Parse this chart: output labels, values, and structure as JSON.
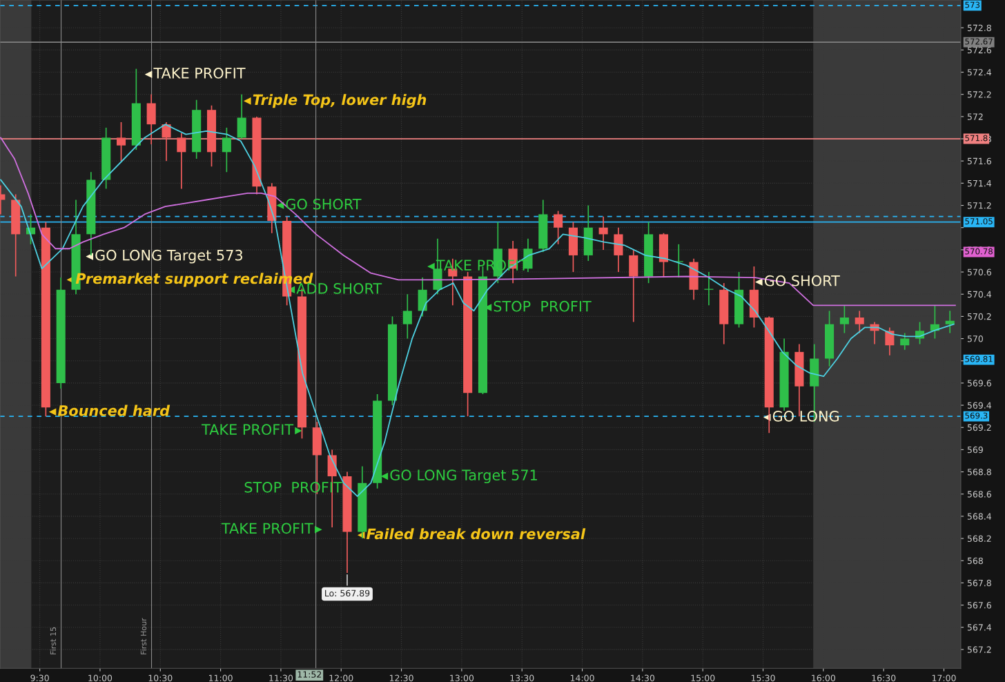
{
  "chart_data": {
    "type": "candlestick",
    "x": [
      9.175,
      9.3,
      9.425,
      9.55,
      9.675,
      9.8,
      9.925,
      10.05,
      10.175,
      10.3,
      10.425,
      10.55,
      10.675,
      10.8,
      10.925,
      11.05,
      11.175,
      11.3,
      11.425,
      11.55,
      11.675,
      11.8,
      11.925,
      12.05,
      12.175,
      12.3,
      12.425,
      12.55,
      12.675,
      12.8,
      12.925,
      13.05,
      13.175,
      13.3,
      13.425,
      13.55,
      13.675,
      13.8,
      13.925,
      14.05,
      14.175,
      14.3,
      14.425,
      14.55,
      14.675,
      14.8,
      14.925,
      15.05,
      15.175,
      15.3,
      15.425,
      15.55,
      15.675,
      15.8,
      15.925,
      16.05,
      16.175,
      16.3,
      16.425,
      16.55,
      16.675,
      16.8,
      16.925,
      17.05
    ],
    "ohlc": [
      [
        571.3,
        571.38,
        571.12,
        571.25
      ],
      [
        571.25,
        571.3,
        570.56,
        570.94
      ],
      [
        570.94,
        571.12,
        570.85,
        571.0
      ],
      [
        571.0,
        571.05,
        569.3,
        569.38
      ],
      [
        569.6,
        570.55,
        569.55,
        570.44
      ],
      [
        570.44,
        571.25,
        570.4,
        570.94
      ],
      [
        570.94,
        571.5,
        570.75,
        571.43
      ],
      [
        571.43,
        571.9,
        571.35,
        571.81
      ],
      [
        571.81,
        571.95,
        571.6,
        571.74
      ],
      [
        571.74,
        572.43,
        571.7,
        572.12
      ],
      [
        572.12,
        572.2,
        571.75,
        571.93
      ],
      [
        571.93,
        571.95,
        571.6,
        571.81
      ],
      [
        571.81,
        571.85,
        571.35,
        571.68
      ],
      [
        571.68,
        572.15,
        571.62,
        572.06
      ],
      [
        572.06,
        572.1,
        571.55,
        571.68
      ],
      [
        571.68,
        571.9,
        571.5,
        571.81
      ],
      [
        571.81,
        572.2,
        571.8,
        571.99
      ],
      [
        571.99,
        572.0,
        571.3,
        571.37
      ],
      [
        571.37,
        571.4,
        570.95,
        571.06
      ],
      [
        571.06,
        571.1,
        570.3,
        570.38
      ],
      [
        570.38,
        570.45,
        569.1,
        569.2
      ],
      [
        569.2,
        569.25,
        568.6,
        568.95
      ],
      [
        568.95,
        569.0,
        568.3,
        568.76
      ],
      [
        568.76,
        568.8,
        567.89,
        568.26
      ],
      [
        568.26,
        568.85,
        568.2,
        568.7
      ],
      [
        568.7,
        569.5,
        568.65,
        569.44
      ],
      [
        569.44,
        570.2,
        569.4,
        570.13
      ],
      [
        570.13,
        570.4,
        570.0,
        570.25
      ],
      [
        570.25,
        570.55,
        570.2,
        570.44
      ],
      [
        570.44,
        570.9,
        570.4,
        570.63
      ],
      [
        570.63,
        570.72,
        570.3,
        570.56
      ],
      [
        570.56,
        570.6,
        569.3,
        569.51
      ],
      [
        569.51,
        570.65,
        569.5,
        570.56
      ],
      [
        570.56,
        571.05,
        570.5,
        570.81
      ],
      [
        570.81,
        570.88,
        570.5,
        570.63
      ],
      [
        570.63,
        570.9,
        570.6,
        570.81
      ],
      [
        570.81,
        571.25,
        570.78,
        571.12
      ],
      [
        571.12,
        571.15,
        570.85,
        571.0
      ],
      [
        571.0,
        571.05,
        570.6,
        570.75
      ],
      [
        570.75,
        571.2,
        570.7,
        571.0
      ],
      [
        571.0,
        571.1,
        570.8,
        570.94
      ],
      [
        570.94,
        571.0,
        570.6,
        570.75
      ],
      [
        570.75,
        570.8,
        570.15,
        570.56
      ],
      [
        570.56,
        571.05,
        570.5,
        570.94
      ],
      [
        570.94,
        570.95,
        570.55,
        570.69
      ],
      [
        570.69,
        570.85,
        570.55,
        570.69
      ],
      [
        570.69,
        570.72,
        570.35,
        570.44
      ],
      [
        570.44,
        570.6,
        570.3,
        570.44
      ],
      [
        570.44,
        570.5,
        569.95,
        570.13
      ],
      [
        570.13,
        570.6,
        570.1,
        570.44
      ],
      [
        570.44,
        570.65,
        570.1,
        570.19
      ],
      [
        570.19,
        570.2,
        569.15,
        569.38
      ],
      [
        569.38,
        570.0,
        569.35,
        569.88
      ],
      [
        569.88,
        569.95,
        569.3,
        569.57
      ],
      [
        569.57,
        569.95,
        569.25,
        569.82
      ],
      [
        569.82,
        570.25,
        569.75,
        570.13
      ],
      [
        570.13,
        570.3,
        570.05,
        570.19
      ],
      [
        570.19,
        570.25,
        570.05,
        570.13
      ],
      [
        570.13,
        570.15,
        569.95,
        570.07
      ],
      [
        570.07,
        570.1,
        569.85,
        569.94
      ],
      [
        569.94,
        570.05,
        569.9,
        570.0
      ],
      [
        570.0,
        570.15,
        569.95,
        570.07
      ],
      [
        570.07,
        570.3,
        570.0,
        570.13
      ],
      [
        570.13,
        570.25,
        570.05,
        570.16
      ]
    ],
    "colors": [
      "#f25c5c",
      "#f25c5c",
      "#2fbf4a",
      "#f25c5c",
      "#2fbf4a",
      "#2fbf4a",
      "#2fbf4a",
      "#2fbf4a",
      "#f25c5c",
      "#2fbf4a",
      "#f25c5c",
      "#f25c5c",
      "#f25c5c",
      "#2fbf4a",
      "#f25c5c",
      "#2fbf4a",
      "#2fbf4a",
      "#f25c5c",
      "#f25c5c",
      "#f25c5c",
      "#f25c5c",
      "#f25c5c",
      "#f25c5c",
      "#f25c5c",
      "#2fbf4a",
      "#2fbf4a",
      "#2fbf4a",
      "#2fbf4a",
      "#2fbf4a",
      "#2fbf4a",
      "#f25c5c",
      "#f25c5c",
      "#2fbf4a",
      "#2fbf4a",
      "#f25c5c",
      "#2fbf4a",
      "#2fbf4a",
      "#f25c5c",
      "#f25c5c",
      "#2fbf4a",
      "#f25c5c",
      "#f25c5c",
      "#f25c5c",
      "#2fbf4a",
      "#f25c5c",
      "#2fbf4a",
      "#f25c5c",
      "#2fbf4a",
      "#f25c5c",
      "#2fbf4a",
      "#f25c5c",
      "#f25c5c",
      "#2fbf4a",
      "#f25c5c",
      "#2fbf4a",
      "#2fbf4a",
      "#2fbf4a",
      "#f25c5c",
      "#f25c5c",
      "#f25c5c",
      "#2fbf4a",
      "#2fbf4a",
      "#2fbf4a",
      "#2fbf4a"
    ],
    "series": [
      {
        "type": "line",
        "color": "#4dd0e1",
        "x": [
          9.176,
          9.346,
          9.517,
          9.688,
          9.858,
          10.029,
          10.2,
          10.37,
          10.541,
          10.712,
          10.882,
          11.053,
          11.167,
          11.28,
          11.394,
          11.451,
          11.565,
          11.679,
          11.792,
          11.906,
          12.02,
          12.134,
          12.247,
          12.361,
          12.475,
          12.589,
          12.703,
          12.816,
          12.93,
          13.015,
          13.101,
          13.214,
          13.385,
          13.556,
          13.726,
          13.84,
          14.011,
          14.181,
          14.352,
          14.523,
          14.693,
          14.864,
          15.035,
          15.205,
          15.319,
          15.433,
          15.547,
          15.66,
          15.774,
          15.888,
          16.002,
          16.116,
          16.229,
          16.343,
          16.457,
          16.571,
          16.684,
          16.798,
          16.912,
          17.082
        ],
        "values": [
          571.43,
          571.19,
          570.63,
          570.81,
          571.19,
          571.43,
          571.62,
          571.81,
          571.93,
          571.84,
          571.87,
          571.84,
          571.78,
          571.56,
          571.25,
          571.06,
          570.38,
          569.69,
          569.32,
          568.95,
          568.7,
          568.58,
          568.7,
          569.07,
          569.57,
          570.0,
          570.32,
          570.44,
          570.5,
          570.32,
          570.25,
          570.44,
          570.63,
          570.75,
          570.81,
          570.94,
          570.91,
          570.87,
          570.84,
          570.75,
          570.72,
          570.66,
          570.56,
          570.44,
          570.38,
          570.25,
          570.07,
          569.88,
          569.76,
          569.69,
          569.66,
          569.82,
          570.0,
          570.1,
          570.1,
          570.04,
          570.02,
          570.02,
          570.07,
          570.13
        ]
      },
      {
        "type": "line",
        "color": "#d070e0",
        "x": [
          9.176,
          9.29,
          9.403,
          9.517,
          9.631,
          9.745,
          9.858,
          10.029,
          10.2,
          10.37,
          10.541,
          10.712,
          10.882,
          11.053,
          11.224,
          11.337,
          11.451,
          11.622,
          11.792,
          12.02,
          12.247,
          12.475,
          12.873,
          13.726,
          14.864,
          15.433,
          15.717,
          15.916,
          17.094
        ],
        "values": [
          571.81,
          571.62,
          571.31,
          570.94,
          570.81,
          570.81,
          570.87,
          570.94,
          571.0,
          571.12,
          571.19,
          571.22,
          571.25,
          571.28,
          571.31,
          571.31,
          571.28,
          571.12,
          570.94,
          570.75,
          570.59,
          570.53,
          570.53,
          570.54,
          570.56,
          570.55,
          570.5,
          570.3,
          570.3
        ]
      }
    ],
    "xlim": [
      9.17,
      17.14
    ],
    "ylim": [
      567.03,
      573.05
    ],
    "xticks": [
      {
        "value": 9.5,
        "label": "9:30"
      },
      {
        "value": 10.0,
        "label": "10:00"
      },
      {
        "value": 10.5,
        "label": "10:30"
      },
      {
        "value": 11.0,
        "label": "11:00"
      },
      {
        "value": 11.5,
        "label": "11:30"
      },
      {
        "value": 12.0,
        "label": "12:00"
      },
      {
        "value": 12.5,
        "label": "12:30"
      },
      {
        "value": 13.0,
        "label": "13:00"
      },
      {
        "value": 13.5,
        "label": "13:30"
      },
      {
        "value": 14.0,
        "label": "14:00"
      },
      {
        "value": 14.5,
        "label": "14:30"
      },
      {
        "value": 15.0,
        "label": "15:00"
      },
      {
        "value": 15.5,
        "label": "15:30"
      },
      {
        "value": 16.0,
        "label": "16:00"
      },
      {
        "value": 16.5,
        "label": "16:30"
      },
      {
        "value": 17.0,
        "label": "17:00"
      }
    ],
    "yticks": [
      567.2,
      567.4,
      567.6,
      567.8,
      568,
      568.2,
      568.4,
      568.6,
      568.8,
      569,
      569.2,
      569.4,
      569.6,
      {
        "value": 569.8,
        "label": null
      },
      570,
      570.2,
      570.4,
      570.6,
      570.8,
      {
        "value": 571,
        "label": null
      },
      571.2,
      571.4,
      571.6,
      571.8,
      572,
      572.2,
      572.4,
      572.6,
      572.8
    ],
    "grid": true,
    "ref_lines": [
      {
        "axis": "y",
        "value": 573,
        "label": "573",
        "color": "#29b6f6",
        "line_style": "dashed"
      },
      {
        "axis": "y",
        "value": 572.67,
        "label": "572.67",
        "color": "#808080",
        "line_style": "solid"
      },
      {
        "axis": "y",
        "value": 571.8,
        "label": "571.8",
        "color": "#f08080",
        "line_style": "solid"
      },
      {
        "axis": "y",
        "value": 571.1,
        "color": "#29b6f6",
        "line_style": "dashed"
      },
      {
        "axis": "y",
        "value": 571.05,
        "label": "571.05",
        "color": "#29b6f6",
        "line_style": "solid"
      },
      {
        "axis": "y",
        "value": 569.3,
        "label": "569.3",
        "color": "#29b6f6",
        "line_style": "dashed"
      },
      {
        "axis": "x",
        "value": 9.677,
        "label": "First 15",
        "color": "#8a8a8a",
        "line_style": "solid"
      },
      {
        "axis": "x",
        "value": 10.427,
        "label": "First Hour",
        "color": "#8a8a8a",
        "line_style": "solid"
      },
      {
        "axis": "x",
        "value": 11.79,
        "color": "#8a8a8a",
        "line_style": "solid"
      }
    ],
    "bands": [
      {
        "axis": "x",
        "from": 9.17,
        "to": 9.43,
        "color": "#3a3a3a"
      },
      {
        "axis": "x",
        "from": 15.916,
        "to": 17.14,
        "color": "#3a3a3a"
      }
    ],
    "annotations": [
      {
        "text": "TAKE PROFIT",
        "x": 10.404,
        "y": 572.38
      },
      {
        "text": "Triple Top, lower high",
        "x": 11.224,
        "y": 572.14
      },
      {
        "text": "GO SHORT",
        "x": 11.497,
        "y": 571.2
      },
      {
        "text": "GO LONG Target 573",
        "x": 9.915,
        "y": 570.74
      },
      {
        "text": "Premarket support reclaimed",
        "x": 9.756,
        "y": 570.53
      },
      {
        "text": "ADD SHORT",
        "x": 11.588,
        "y": 570.44
      },
      {
        "text": "TAKE PROFIT",
        "x": 12.748,
        "y": 570.65
      },
      {
        "text": "STOP  PROFIT",
        "x": 13.22,
        "y": 570.28
      },
      {
        "text": "GO SHORT",
        "x": 15.467,
        "y": 570.51
      },
      {
        "text": "Bounced hard",
        "x": 9.608,
        "y": 569.34
      },
      {
        "text": "GO LONG",
        "x": 15.535,
        "y": 569.29
      },
      {
        "text": "TAKE PROFIT",
        "x": 11.644,
        "y": 569.17
      },
      {
        "text": "GO LONG Target 571",
        "x": 12.361,
        "y": 568.76
      },
      {
        "text": "STOP  PROFIT",
        "x": 12.048,
        "y": 568.65
      },
      {
        "text": "TAKE PROFIT",
        "x": 11.809,
        "y": 568.28
      },
      {
        "text": "Failed break down reversal",
        "x": 12.168,
        "y": 568.23
      },
      {
        "text": "570.78",
        "x": 17.14,
        "y": 570.78
      },
      {
        "text": "569.81",
        "x": 17.14,
        "y": 569.81
      },
      "Lo: 567.89",
      "11:52"
    ]
  }
}
